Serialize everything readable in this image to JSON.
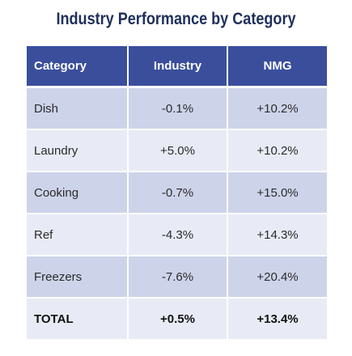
{
  "chart_data": {
    "type": "table",
    "title": "Industry Performance by Category",
    "columns": [
      "Category",
      "Industry",
      "NMG"
    ],
    "rows": [
      {
        "category": "Dish",
        "industry": "-0.1%",
        "nmg": "+10.2%"
      },
      {
        "category": "Laundry",
        "industry": "+5.0%",
        "nmg": "+10.2%"
      },
      {
        "category": "Cooking",
        "industry": "-0.7%",
        "nmg": "+15.0%"
      },
      {
        "category": "Ref",
        "industry": "-4.3%",
        "nmg": "+14.3%"
      },
      {
        "category": "Freezers",
        "industry": "-7.6%",
        "nmg": "+20.4%"
      }
    ],
    "total": {
      "category": "TOTAL",
      "industry": "+0.5%",
      "nmg": "+13.4%"
    },
    "colors": {
      "title": "#1f2f5b",
      "header_bg": "#3a4e9c",
      "row_odd": "#cdd4ea",
      "row_even": "#e8ebf5"
    }
  }
}
